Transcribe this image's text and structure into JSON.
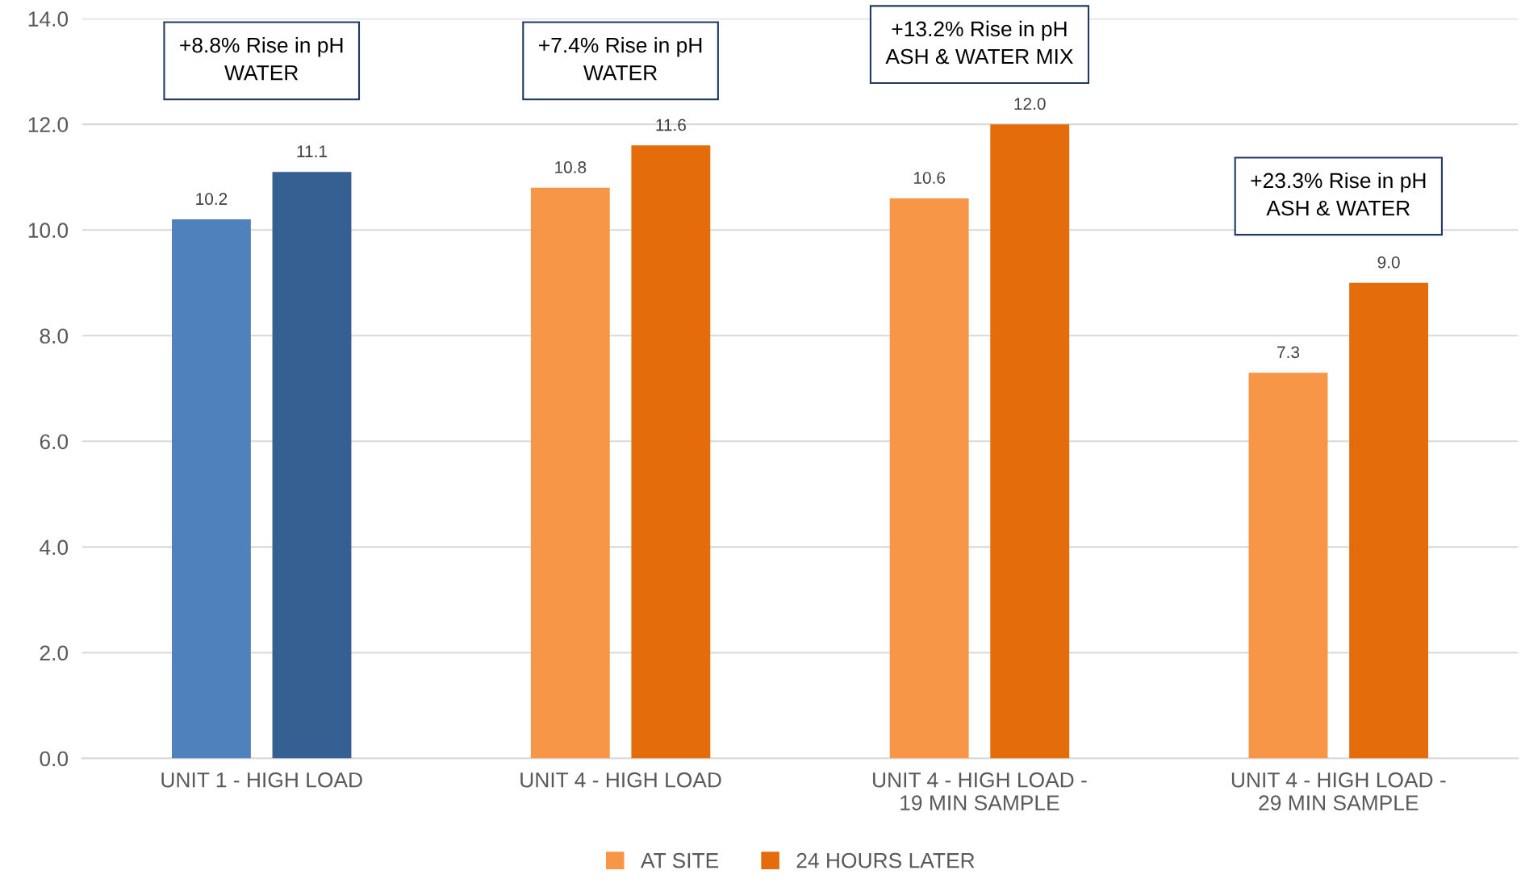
{
  "chart_data": {
    "type": "bar",
    "categories": [
      "UNIT 1 - HIGH LOAD",
      "UNIT 4 - HIGH LOAD",
      "UNIT 4 - HIGH LOAD -\n19 MIN SAMPLE",
      "UNIT 4 - HIGH LOAD -\n29 MIN SAMPLE"
    ],
    "series": [
      {
        "name": "AT SITE",
        "color": "#f79646",
        "colors": [
          "#4f81bd",
          "#f79646",
          "#f79646",
          "#f79646"
        ],
        "values": [
          10.2,
          10.8,
          10.6,
          7.3
        ],
        "value_labels": [
          "10.2",
          "10.8",
          "10.6",
          "7.3"
        ]
      },
      {
        "name": "24 HOURS LATER",
        "color": "#e46c0a",
        "colors": [
          "#366092",
          "#e46c0a",
          "#e46c0a",
          "#e46c0a"
        ],
        "values": [
          11.1,
          11.6,
          12,
          9
        ],
        "value_labels": [
          "11.1",
          "11.6",
          "12.0",
          "9.0"
        ]
      }
    ],
    "ylim": [
      0,
      14
    ],
    "yticks": [
      {
        "value": 0,
        "label": "0.0"
      },
      {
        "value": 2,
        "label": "2.0"
      },
      {
        "value": 4,
        "label": "4.0"
      },
      {
        "value": 6,
        "label": "6.0"
      },
      {
        "value": 8,
        "label": "8.0"
      },
      {
        "value": 10,
        "label": "10.0"
      },
      {
        "value": 12,
        "label": "12.0"
      },
      {
        "value": 14,
        "label": "14.0"
      }
    ],
    "grid": "y",
    "legend": "bottom",
    "annotations": [
      "+8.8% Rise in pH\nWATER",
      "+7.4% Rise in pH\nWATER",
      "+13.2% Rise in pH\nASH & WATER MIX",
      "+23.3% Rise in pH\nASH & WATER"
    ]
  }
}
